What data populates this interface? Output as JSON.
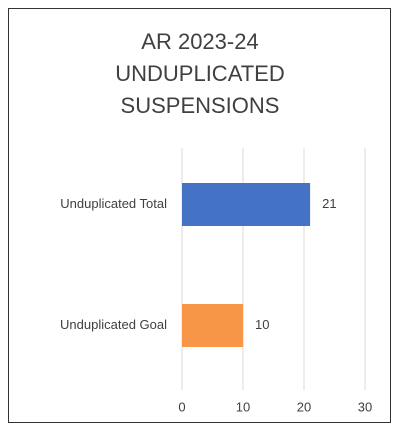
{
  "chart_data": {
    "type": "bar",
    "orientation": "horizontal",
    "title": "AR 2023-24 UNDUPLICATED SUSPENSIONS",
    "categories": [
      "Unduplicated Total",
      "Unduplicated Goal"
    ],
    "values": [
      21,
      10
    ],
    "colors": [
      "#4472c4",
      "#f79646"
    ],
    "xlim": [
      0,
      30
    ],
    "xticks": [
      0,
      10,
      20,
      30
    ],
    "grid": true
  }
}
